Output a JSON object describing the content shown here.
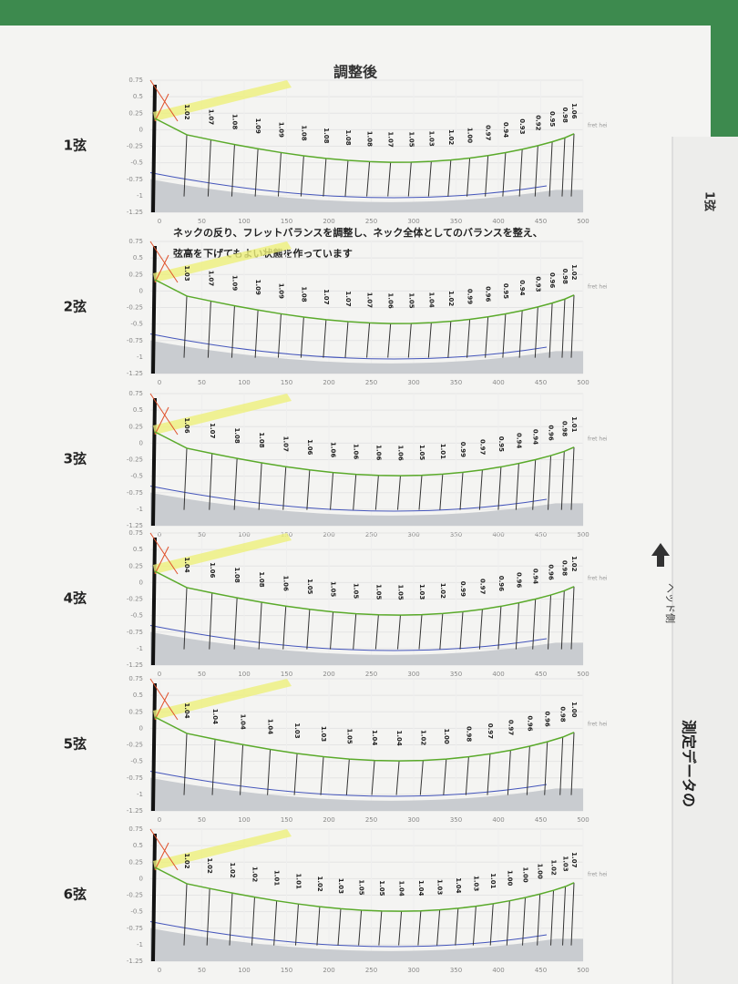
{
  "header": {
    "title": "調整後"
  },
  "caption": [
    "ネックの反り、フレットバランスを調整し、ネック全体としてのバランスを整え、",
    "弦高を下げてもよい状態を作っています"
  ],
  "axis": {
    "yticks": [
      "0.75",
      "0.5",
      "0.25",
      "0",
      "-0.25",
      "-0.5",
      "-0.75",
      "-1",
      "-1.25"
    ],
    "xticks": [
      "0",
      "50",
      "100",
      "150",
      "200",
      "250",
      "300",
      "350",
      "400",
      "450",
      "500"
    ],
    "legend": "fret hei"
  },
  "panels": [
    {
      "label": "1弦",
      "values": [
        "1.02",
        "1.07",
        "1.08",
        "1.09",
        "1.09",
        "1.08",
        "1.08",
        "1.08",
        "1.08",
        "1.07",
        "1.05",
        "1.03",
        "1.02",
        "1.00",
        "0.97",
        "0.94",
        "0.93",
        "0.92",
        "0.95",
        "0.98",
        "1.06"
      ]
    },
    {
      "label": "2弦",
      "values": [
        "1.03",
        "1.07",
        "1.09",
        "1.09",
        "1.09",
        "1.08",
        "1.07",
        "1.07",
        "1.07",
        "1.06",
        "1.05",
        "1.04",
        "1.02",
        "0.99",
        "0.96",
        "0.95",
        "0.94",
        "0.93",
        "0.96",
        "0.98",
        "1.02"
      ]
    },
    {
      "label": "3弦",
      "values": [
        "1.06",
        "1.07",
        "1.08",
        "1.08",
        "1.07",
        "1.06",
        "1.06",
        "1.06",
        "1.06",
        "1.06",
        "1.05",
        "1.01",
        "0.99",
        "0.97",
        "0.95",
        "0.94",
        "0.94",
        "0.96",
        "0.98",
        "1.01"
      ]
    },
    {
      "label": "4弦",
      "values": [
        "1.04",
        "1.06",
        "1.08",
        "1.08",
        "1.06",
        "1.05",
        "1.05",
        "1.05",
        "1.05",
        "1.05",
        "1.03",
        "1.02",
        "0.99",
        "0.97",
        "0.96",
        "0.96",
        "0.94",
        "0.96",
        "0.98",
        "1.02"
      ]
    },
    {
      "label": "5弦",
      "values": [
        "1.04",
        "1.04",
        "1.04",
        "1.04",
        "1.03",
        "1.03",
        "1.05",
        "1.04",
        "1.04",
        "1.02",
        "1.00",
        "0.98",
        "0.97",
        "0.97",
        "0.96",
        "0.96",
        "0.98",
        "1.00"
      ]
    },
    {
      "label": "6弦",
      "values": [
        "1.02",
        "1.02",
        "1.02",
        "1.02",
        "1.01",
        "1.01",
        "1.02",
        "1.03",
        "1.05",
        "1.05",
        "1.04",
        "1.04",
        "1.03",
        "1.04",
        "1.03",
        "1.01",
        "1.00",
        "1.00",
        "1.00",
        "1.02",
        "1.03",
        "1.07"
      ]
    }
  ],
  "side": {
    "label": "1弦",
    "head": "ヘッド側",
    "more": "測定データの"
  }
}
